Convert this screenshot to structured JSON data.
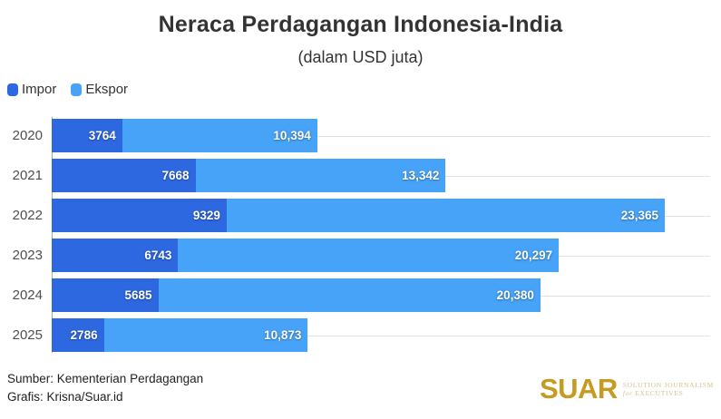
{
  "title": "Neraca Perdagangan Indonesia-India",
  "subtitle": "(dalam USD juta)",
  "legend": [
    {
      "label": "Impor",
      "color": "#2e68e0"
    },
    {
      "label": "Ekspor",
      "color": "#47a3f7"
    }
  ],
  "chart_data": {
    "type": "bar",
    "orientation": "horizontal",
    "stacked": true,
    "grid": "horizontal-row-lines",
    "legend_position": "top-left",
    "categories": [
      "2020",
      "2021",
      "2022",
      "2023",
      "2024",
      "2025"
    ],
    "series": [
      {
        "name": "Impor",
        "color": "#2e68e0",
        "values": [
          3764,
          7668,
          9329,
          6743,
          5685,
          2786
        ],
        "labels": [
          "3764",
          "7668",
          "9329",
          "6743",
          "5685",
          "2786"
        ]
      },
      {
        "name": "Ekspor",
        "color": "#47a3f7",
        "values": [
          10394,
          13342,
          23365,
          20297,
          20380,
          10873
        ],
        "labels": [
          "10,394",
          "13,342",
          "23,365",
          "20,297",
          "20,380",
          "10,873"
        ]
      }
    ],
    "x_range": [
      0,
      32694
    ],
    "title": "Neraca Perdagangan Indonesia-India",
    "xlabel": "",
    "ylabel": ""
  },
  "footer": {
    "source": "Sumber: Kementerian Perdagangan",
    "credit": "Grafis: Krisna/Suar.id"
  },
  "logo": {
    "word": "SUAR",
    "word_color": "#c59b22",
    "tagline_line1": "Solution Journalism",
    "tagline_for": "for",
    "tagline_rest": "Executives",
    "tagline_color": "#d5c28e"
  }
}
